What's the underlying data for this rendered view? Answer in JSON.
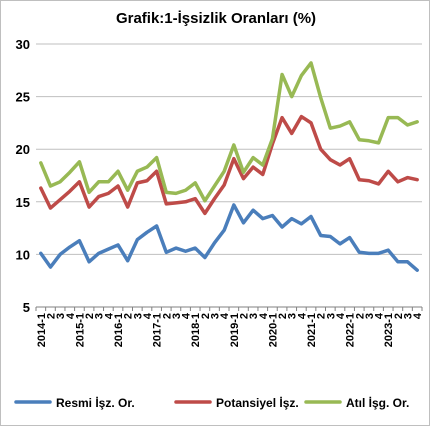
{
  "chart_data": {
    "type": "line",
    "title": "Grafik:1-İşsizlik Oranları (%)",
    "xlabel": "",
    "ylabel": "",
    "ylim": [
      5,
      30
    ],
    "yticks": [
      "5",
      "10",
      "15",
      "20",
      "25",
      "30"
    ],
    "x": [
      "2014-1",
      "2",
      "3",
      "4",
      "2015-1",
      "2",
      "3",
      "4",
      "2016-1",
      "2",
      "3",
      "4",
      "2017-1",
      "2",
      "3",
      "4",
      "2018-1",
      "2",
      "3",
      "4",
      "2019-1",
      "2",
      "3",
      "4",
      "2020-1",
      "2",
      "3",
      "4",
      "2021-1",
      "2",
      "3",
      "4",
      "2022-1",
      "2",
      "3",
      "4",
      "2023-1",
      "2",
      "3",
      "4"
    ],
    "grid": true,
    "legend_position": "bottom",
    "series": [
      {
        "name": "Resmi İşz. Or.",
        "color": "#4a7ebb",
        "values": [
          10.1,
          8.8,
          10.0,
          10.7,
          11.3,
          9.3,
          10.1,
          10.5,
          10.9,
          9.4,
          11.4,
          12.1,
          12.7,
          10.2,
          10.6,
          10.3,
          10.6,
          9.7,
          11.1,
          12.3,
          14.7,
          13.0,
          14.2,
          13.4,
          13.7,
          12.6,
          13.4,
          12.9,
          13.6,
          11.8,
          11.7,
          11.0,
          11.6,
          10.2,
          10.1,
          10.1,
          10.4,
          9.3,
          9.3,
          8.5
        ]
      },
      {
        "name": "Potansiyel İşz.",
        "color": "#be4b48",
        "values": [
          16.3,
          14.4,
          15.2,
          16.0,
          16.9,
          14.5,
          15.5,
          15.8,
          16.5,
          14.5,
          16.8,
          17.0,
          17.9,
          14.8,
          14.9,
          15.0,
          15.3,
          13.9,
          15.3,
          16.6,
          19.1,
          17.2,
          18.3,
          17.6,
          20.5,
          23.0,
          21.5,
          23.1,
          22.5,
          20.0,
          19.0,
          18.5,
          19.1,
          17.1,
          17.0,
          16.7,
          17.9,
          16.9,
          17.3,
          17.1
        ]
      },
      {
        "name": "Atıl İşg. Or.",
        "color": "#98b954",
        "values": [
          18.7,
          16.5,
          16.9,
          17.8,
          18.8,
          15.9,
          16.9,
          16.9,
          17.9,
          16.1,
          17.9,
          18.3,
          19.2,
          15.9,
          15.8,
          16.1,
          16.8,
          15.1,
          16.5,
          17.9,
          20.4,
          17.8,
          19.2,
          18.5,
          21.0,
          27.1,
          25.0,
          27.0,
          28.2,
          24.9,
          22.0,
          22.2,
          22.6,
          20.9,
          20.8,
          20.6,
          23.0,
          23.0,
          22.3,
          22.6
        ]
      }
    ]
  }
}
